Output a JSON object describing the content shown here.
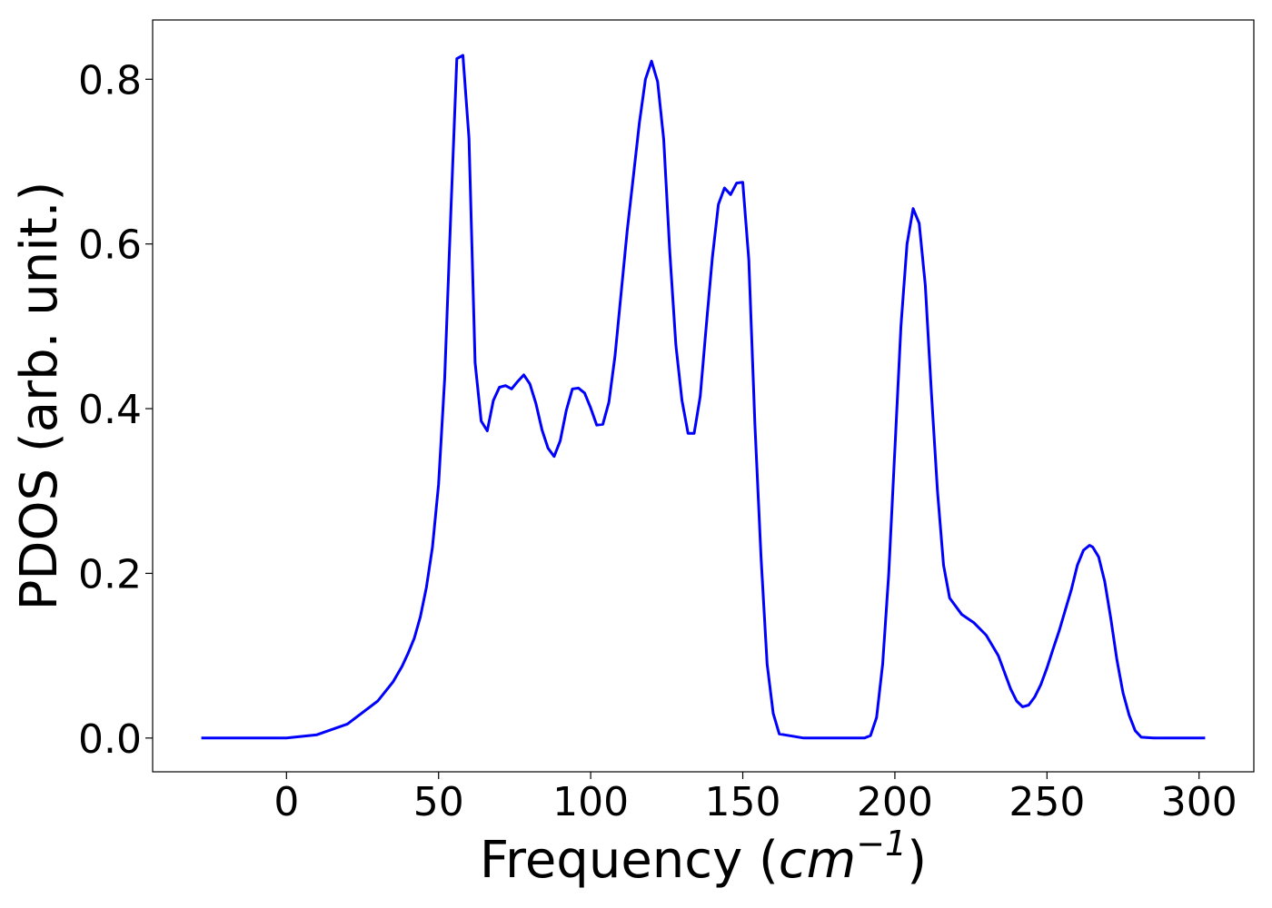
{
  "chart_data": {
    "type": "line",
    "title": "",
    "xlabel": "Frequency (cm^-1)",
    "xlabel_parts": {
      "prefix": "Frequency (",
      "base": "cm",
      "exponent": "−1",
      "suffix": ")"
    },
    "ylabel": "PDOS (arb. unit.)",
    "xlim": [
      -44,
      318
    ],
    "ylim": [
      -0.041,
      0.872
    ],
    "xticks": [
      0,
      50,
      100,
      150,
      200,
      250,
      300
    ],
    "xtick_labels": [
      "0",
      "50",
      "100",
      "150",
      "200",
      "250",
      "300"
    ],
    "yticks": [
      0.0,
      0.2,
      0.4,
      0.6,
      0.8
    ],
    "ytick_labels": [
      "0.0",
      "0.2",
      "0.4",
      "0.6",
      "0.8"
    ],
    "grid": false,
    "legend": "none",
    "series": [
      {
        "color": "#0000ff",
        "x": [
          -28,
          -10,
          0,
          10,
          20,
          30,
          35,
          38,
          40,
          42,
          44,
          46,
          48,
          50,
          52,
          54,
          56,
          58,
          60,
          62,
          64,
          66,
          68,
          70,
          72,
          74,
          76,
          78,
          80,
          82,
          84,
          86,
          88,
          90,
          92,
          94,
          96,
          98,
          100,
          102,
          104,
          106,
          108,
          110,
          112,
          114,
          116,
          118,
          120,
          122,
          124,
          126,
          128,
          130,
          132,
          134,
          136,
          138,
          140,
          142,
          144,
          146,
          148,
          150,
          152,
          154,
          156,
          158,
          160,
          162,
          170,
          180,
          190,
          192,
          194,
          196,
          198,
          200,
          202,
          204,
          206,
          208,
          210,
          212,
          214,
          216,
          218,
          222,
          226,
          230,
          234,
          238,
          240,
          242,
          244,
          246,
          248,
          250,
          252,
          254,
          256,
          258,
          260,
          262,
          264,
          265,
          267,
          269,
          271,
          273,
          275,
          277,
          279,
          281,
          285,
          290,
          302
        ],
        "y": [
          0.0,
          0.0,
          0.0,
          0.004,
          0.017,
          0.045,
          0.068,
          0.087,
          0.103,
          0.121,
          0.147,
          0.183,
          0.232,
          0.308,
          0.436,
          0.635,
          0.825,
          0.829,
          0.728,
          0.456,
          0.385,
          0.373,
          0.41,
          0.426,
          0.428,
          0.424,
          0.433,
          0.441,
          0.43,
          0.406,
          0.374,
          0.352,
          0.342,
          0.361,
          0.398,
          0.424,
          0.425,
          0.419,
          0.401,
          0.38,
          0.381,
          0.408,
          0.464,
          0.54,
          0.616,
          0.681,
          0.747,
          0.8,
          0.822,
          0.797,
          0.727,
          0.59,
          0.477,
          0.41,
          0.37,
          0.37,
          0.415,
          0.5,
          0.583,
          0.648,
          0.668,
          0.66,
          0.674,
          0.675,
          0.58,
          0.38,
          0.22,
          0.09,
          0.03,
          0.005,
          0.0,
          0.0,
          0.0,
          0.003,
          0.025,
          0.09,
          0.2,
          0.35,
          0.5,
          0.6,
          0.643,
          0.625,
          0.55,
          0.42,
          0.3,
          0.21,
          0.17,
          0.15,
          0.14,
          0.125,
          0.1,
          0.06,
          0.045,
          0.038,
          0.04,
          0.05,
          0.065,
          0.085,
          0.108,
          0.13,
          0.155,
          0.18,
          0.21,
          0.228,
          0.234,
          0.232,
          0.22,
          0.19,
          0.145,
          0.095,
          0.055,
          0.028,
          0.009,
          0.001,
          0.0,
          0.0,
          0.0
        ]
      }
    ]
  }
}
